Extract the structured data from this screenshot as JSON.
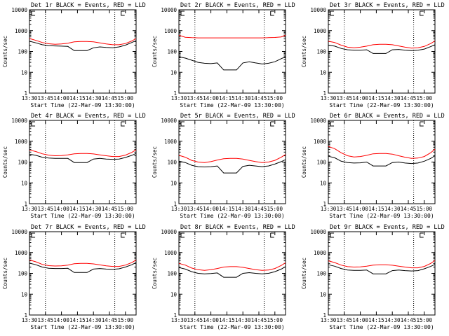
{
  "colors": {
    "events": "#000000",
    "lld": "#ff0000",
    "axis": "#000000",
    "background": "#ffffff"
  },
  "chart_data": [
    {
      "type": "line",
      "detector": "1r",
      "title": "Det 1r BLACK = Events, RED = LLD",
      "xlabel": "Start Time (22-Mar-09 13:30:00)",
      "ylabel": "Counts/sec",
      "xlim": [
        0,
        100
      ],
      "ylim": [
        1,
        10000
      ],
      "yscale": "log",
      "xticks": [
        "13:30",
        "13:45",
        "14:00",
        "14:15",
        "14:30",
        "14:45",
        "15:00"
      ],
      "yticks": [
        "1",
        "10",
        "100",
        "1000",
        "10000"
      ],
      "vlines_min": [
        15,
        80
      ],
      "attenuator_marker": "label",
      "x": [
        0,
        6,
        12,
        18,
        24,
        30,
        36,
        42,
        48,
        54,
        60,
        66,
        72,
        78,
        84,
        90,
        96,
        100
      ],
      "series": [
        {
          "name": "Events",
          "color_key": "events",
          "values": [
            310,
            260,
            210,
            190,
            185,
            180,
            175,
            110,
            110,
            110,
            150,
            165,
            155,
            150,
            165,
            200,
            270,
            330
          ]
        },
        {
          "name": "LLD",
          "color_key": "lld",
          "values": [
            420,
            340,
            270,
            235,
            220,
            230,
            250,
            290,
            300,
            300,
            290,
            260,
            230,
            210,
            210,
            240,
            320,
            420
          ]
        }
      ]
    },
    {
      "type": "line",
      "detector": "2r",
      "title": "Det 2r BLACK = Events, RED = LLD",
      "xlabel": "Start Time (22-Mar-09 13:30:00)",
      "ylabel": "Counts/sec",
      "xlim": [
        0,
        100
      ],
      "ylim": [
        1,
        10000
      ],
      "yscale": "log",
      "xticks": [
        "13:30",
        "13:45",
        "14:00",
        "14:15",
        "14:30",
        "14:45",
        "15:00"
      ],
      "yticks": [
        "1",
        "10",
        "100",
        "1000",
        "10000"
      ],
      "vlines_min": [
        15,
        80
      ],
      "attenuator_marker": "label",
      "x": [
        0,
        6,
        12,
        18,
        24,
        30,
        36,
        42,
        48,
        54,
        60,
        66,
        72,
        78,
        84,
        90,
        96,
        100
      ],
      "series": [
        {
          "name": "Events",
          "color_key": "events",
          "values": [
            55,
            48,
            38,
            30,
            27,
            26,
            28,
            13,
            13,
            13,
            28,
            32,
            28,
            25,
            27,
            32,
            45,
            55
          ]
        },
        {
          "name": "LLD",
          "color_key": "lld",
          "values": [
            600,
            480,
            460,
            450,
            450,
            450,
            450,
            450,
            450,
            450,
            450,
            450,
            450,
            450,
            460,
            470,
            500,
            600
          ]
        }
      ]
    },
    {
      "type": "line",
      "detector": "3r",
      "title": "Det 3r BLACK = Events, RED = LLD",
      "xlabel": "Start Time (22-Mar-09 13:30:00)",
      "ylabel": "Counts/sec",
      "xlim": [
        0,
        100
      ],
      "ylim": [
        1,
        10000
      ],
      "yscale": "log",
      "xticks": [
        "13:30",
        "13:45",
        "14:00",
        "14:15",
        "14:30",
        "14:45",
        "15:00"
      ],
      "yticks": [
        "1",
        "10",
        "100",
        "1000",
        "10000"
      ],
      "vlines_min": [
        15,
        80
      ],
      "attenuator_marker": "label",
      "x": [
        0,
        6,
        12,
        18,
        24,
        30,
        36,
        42,
        48,
        54,
        60,
        66,
        72,
        78,
        84,
        90,
        96,
        100
      ],
      "series": [
        {
          "name": "Events",
          "color_key": "events",
          "values": [
            200,
            180,
            140,
            120,
            115,
            115,
            120,
            80,
            80,
            80,
            120,
            125,
            115,
            110,
            115,
            130,
            170,
            210
          ]
        },
        {
          "name": "LLD",
          "color_key": "lld",
          "values": [
            310,
            270,
            200,
            160,
            150,
            160,
            180,
            210,
            220,
            220,
            210,
            185,
            160,
            145,
            150,
            175,
            240,
            320
          ]
        }
      ]
    },
    {
      "type": "line",
      "detector": "4r",
      "title": "Det 4r BLACK = Events, RED = LLD",
      "xlabel": "Start Time (22-Mar-09 13:30:00)",
      "ylabel": "Counts/sec",
      "xlim": [
        0,
        100
      ],
      "ylim": [
        1,
        10000
      ],
      "yscale": "log",
      "xticks": [
        "13:30",
        "13:45",
        "14:00",
        "14:15",
        "14:30",
        "14:45",
        "15:00"
      ],
      "yticks": [
        "1",
        "10",
        "100",
        "1000",
        "10000"
      ],
      "vlines_min": [
        15,
        80
      ],
      "attenuator_marker": "label",
      "x": [
        0,
        6,
        12,
        18,
        24,
        30,
        36,
        42,
        48,
        54,
        60,
        66,
        72,
        78,
        84,
        90,
        96,
        100
      ],
      "series": [
        {
          "name": "Events",
          "color_key": "events",
          "values": [
            240,
            210,
            170,
            155,
            150,
            150,
            150,
            95,
            95,
            95,
            140,
            150,
            140,
            135,
            140,
            165,
            210,
            260
          ]
        },
        {
          "name": "LLD",
          "color_key": "lld",
          "values": [
            380,
            320,
            250,
            215,
            200,
            205,
            220,
            250,
            260,
            260,
            245,
            220,
            200,
            185,
            185,
            215,
            290,
            390
          ]
        }
      ]
    },
    {
      "type": "line",
      "detector": "5r",
      "title": "Det 5r BLACK = Events, RED = LLD",
      "xlabel": "Start Time (22-Mar-09 13:30:00)",
      "ylabel": "Counts/sec",
      "xlim": [
        0,
        100
      ],
      "ylim": [
        1,
        10000
      ],
      "yscale": "log",
      "xticks": [
        "13:30",
        "13:45",
        "14:00",
        "14:15",
        "14:30",
        "14:45",
        "15:00"
      ],
      "yticks": [
        "1",
        "10",
        "100",
        "1000",
        "10000"
      ],
      "vlines_min": [
        15,
        80
      ],
      "attenuator_marker": "label",
      "x": [
        0,
        6,
        12,
        18,
        24,
        30,
        36,
        42,
        48,
        54,
        60,
        66,
        72,
        78,
        84,
        90,
        96,
        100
      ],
      "series": [
        {
          "name": "Events",
          "color_key": "events",
          "values": [
            110,
            95,
            70,
            60,
            58,
            60,
            65,
            30,
            30,
            30,
            62,
            70,
            65,
            60,
            65,
            80,
            105,
            130
          ]
        },
        {
          "name": "LLD",
          "color_key": "lld",
          "values": [
            210,
            170,
            120,
            100,
            95,
            105,
            125,
            145,
            150,
            150,
            140,
            120,
            105,
            95,
            100,
            120,
            170,
            230
          ]
        }
      ]
    },
    {
      "type": "line",
      "detector": "6r",
      "title": "Det 6r BLACK = Events, RED = LLD",
      "xlabel": "Start Time (22-Mar-09 13:30:00)",
      "ylabel": "Counts/sec",
      "xlim": [
        0,
        100
      ],
      "ylim": [
        1,
        10000
      ],
      "yscale": "log",
      "xticks": [
        "13:30",
        "13:45",
        "14:00",
        "14:15",
        "14:30",
        "14:45",
        "15:00"
      ],
      "yticks": [
        "1",
        "10",
        "100",
        "1000",
        "10000"
      ],
      "vlines_min": [
        15,
        80
      ],
      "attenuator_marker": "label",
      "x": [
        0,
        6,
        12,
        18,
        24,
        30,
        36,
        42,
        48,
        54,
        60,
        66,
        72,
        78,
        84,
        90,
        96,
        100
      ],
      "series": [
        {
          "name": "Events",
          "color_key": "events",
          "values": [
            190,
            160,
            110,
            95,
            90,
            92,
            100,
            65,
            65,
            65,
            95,
            100,
            90,
            85,
            90,
            110,
            150,
            200
          ]
        },
        {
          "name": "LLD",
          "color_key": "lld",
          "values": [
            560,
            440,
            280,
            200,
            175,
            185,
            210,
            250,
            260,
            260,
            240,
            200,
            170,
            150,
            155,
            185,
            280,
            420
          ]
        }
      ]
    },
    {
      "type": "line",
      "detector": "7r",
      "title": "Det 7r BLACK = Events, RED = LLD",
      "xlabel": "Start Time (22-Mar-09 13:30:00)",
      "ylabel": "Counts/sec",
      "xlim": [
        0,
        100
      ],
      "ylim": [
        1,
        10000
      ],
      "yscale": "log",
      "xticks": [
        "13:30",
        "13:45",
        "14:00",
        "14:15",
        "14:30",
        "14:45",
        "15:00"
      ],
      "yticks": [
        "1",
        "10",
        "100",
        "1000",
        "10000"
      ],
      "vlines_min": [
        15,
        80
      ],
      "attenuator_marker": "label",
      "x": [
        0,
        6,
        12,
        18,
        24,
        30,
        36,
        42,
        48,
        54,
        60,
        66,
        72,
        78,
        84,
        90,
        96,
        100
      ],
      "series": [
        {
          "name": "Events",
          "color_key": "events",
          "values": [
            310,
            260,
            200,
            175,
            170,
            170,
            175,
            110,
            110,
            110,
            160,
            170,
            160,
            155,
            165,
            200,
            260,
            330
          ]
        },
        {
          "name": "LLD",
          "color_key": "lld",
          "values": [
            440,
            360,
            270,
            235,
            225,
            230,
            250,
            290,
            300,
            300,
            285,
            255,
            230,
            215,
            215,
            250,
            330,
            440
          ]
        }
      ]
    },
    {
      "type": "line",
      "detector": "8r",
      "title": "Det 8r BLACK = Events, RED = LLD",
      "xlabel": "Start Time (22-Mar-09 13:30:00)",
      "ylabel": "Counts/sec",
      "xlim": [
        0,
        100
      ],
      "ylim": [
        1,
        10000
      ],
      "yscale": "log",
      "xticks": [
        "13:30",
        "13:45",
        "14:00",
        "14:15",
        "14:30",
        "14:45",
        "15:00"
      ],
      "yticks": [
        "1",
        "10",
        "100",
        "1000",
        "10000"
      ],
      "vlines_min": [
        15,
        80
      ],
      "attenuator_marker": "label",
      "x": [
        0,
        6,
        12,
        18,
        24,
        30,
        36,
        42,
        48,
        54,
        60,
        66,
        72,
        78,
        84,
        90,
        96,
        100
      ],
      "series": [
        {
          "name": "Events",
          "color_key": "events",
          "values": [
            190,
            160,
            120,
            100,
            95,
            98,
            105,
            65,
            65,
            65,
            100,
            108,
            100,
            95,
            100,
            120,
            160,
            210
          ]
        },
        {
          "name": "LLD",
          "color_key": "lld",
          "values": [
            300,
            250,
            180,
            150,
            140,
            150,
            170,
            200,
            210,
            210,
            195,
            170,
            150,
            140,
            145,
            170,
            240,
            320
          ]
        }
      ]
    },
    {
      "type": "line",
      "detector": "9r",
      "title": "Det 9r BLACK = Events, RED = LLD",
      "xlabel": "Start Time (22-Mar-09 13:30:00)",
      "ylabel": "Counts/sec",
      "xlim": [
        0,
        100
      ],
      "ylim": [
        1,
        10000
      ],
      "yscale": "log",
      "xticks": [
        "13:30",
        "13:45",
        "14:00",
        "14:15",
        "14:30",
        "14:45",
        "15:00"
      ],
      "yticks": [
        "1",
        "10",
        "100",
        "1000",
        "10000"
      ],
      "vlines_min": [
        15,
        80
      ],
      "attenuator_marker": "label",
      "x": [
        0,
        6,
        12,
        18,
        24,
        30,
        36,
        42,
        48,
        54,
        60,
        66,
        72,
        78,
        84,
        90,
        96,
        100
      ],
      "series": [
        {
          "name": "Events",
          "color_key": "events",
          "values": [
            260,
            220,
            170,
            145,
            140,
            140,
            145,
            95,
            95,
            95,
            135,
            145,
            135,
            130,
            135,
            165,
            215,
            270
          ]
        },
        {
          "name": "LLD",
          "color_key": "lld",
          "values": [
            400,
            330,
            250,
            210,
            200,
            205,
            220,
            250,
            260,
            260,
            245,
            220,
            200,
            185,
            185,
            215,
            300,
            420
          ]
        }
      ]
    }
  ]
}
